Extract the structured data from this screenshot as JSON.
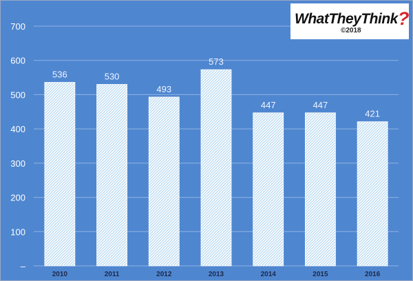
{
  "logo": {
    "text": "WhatTheyThink",
    "mark": "?",
    "copyright": "©2018"
  },
  "colors": {
    "background": "#4f86d0",
    "bar_pattern": "#c9e4f5",
    "bar_background": "#ffffff",
    "grid": "#8fb3e2",
    "text": "#ffffff",
    "value_labels": "#eef4ff",
    "category_labels": "#1b2a4a",
    "logo_accent": "#d7242b"
  },
  "chart_data": {
    "type": "bar",
    "title": "",
    "xlabel": "",
    "ylabel": "",
    "categories": [
      "2010",
      "2011",
      "2012",
      "2013",
      "2014",
      "2015",
      "2016"
    ],
    "values": [
      536,
      530,
      493,
      573,
      447,
      447,
      421
    ],
    "value_labels": [
      "536",
      "530",
      "493",
      "573",
      "447",
      "447",
      "421"
    ],
    "ylim": [
      0,
      700
    ],
    "yticks": [
      0,
      100,
      200,
      300,
      400,
      500,
      600,
      700
    ],
    "ytick_labels": [
      "–",
      "100",
      "200",
      "300",
      "400",
      "500",
      "600",
      "700"
    ],
    "grid": true,
    "legend": "none"
  }
}
